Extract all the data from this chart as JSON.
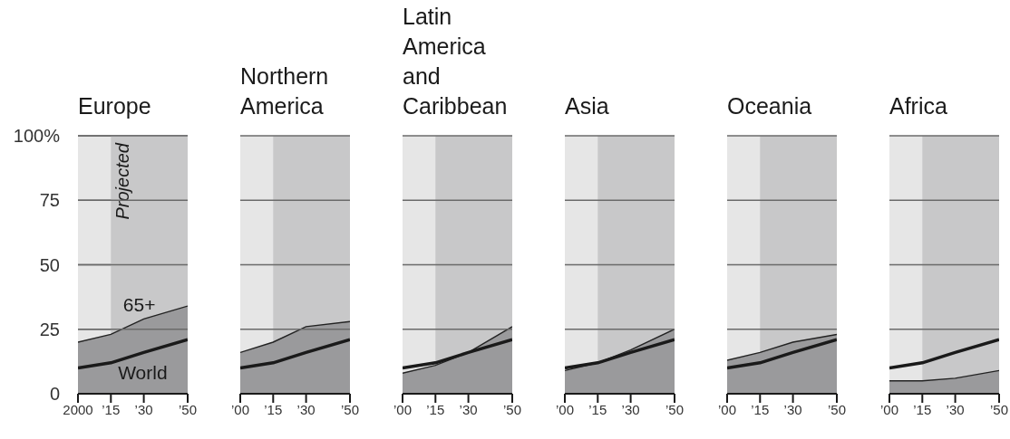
{
  "chart_data": [
    {
      "type": "area",
      "title": "Europe",
      "x": [
        2000,
        2015,
        2030,
        2050
      ],
      "series": [
        {
          "name": "65+",
          "color": "#9a9a9c",
          "values": [
            20,
            23,
            29,
            34
          ]
        },
        {
          "name": "World",
          "type": "line",
          "color": "#1a1a1a",
          "values": [
            10,
            12,
            16,
            21
          ]
        }
      ],
      "xlim": [
        2000,
        2050
      ],
      "xticks": [
        {
          "value": 2000,
          "label": "2000"
        },
        {
          "value": 2015,
          "label": "’15"
        },
        {
          "value": 2030,
          "label": "’30"
        },
        {
          "value": 2050,
          "label": "’50"
        }
      ],
      "ylim": [
        0,
        100
      ],
      "yticks": [
        0,
        25,
        50,
        75,
        {
          "value": 100,
          "label": "100%"
        }
      ],
      "grid": "y",
      "bands": [
        {
          "axis": "x",
          "from": 2015,
          "to": 2050,
          "label": "Projected",
          "color": "#c8c8c9"
        }
      ]
    },
    {
      "type": "area",
      "title": "Northern America",
      "x": [
        2000,
        2015,
        2030,
        2050
      ],
      "series": [
        {
          "color": "#9a9a9c",
          "values": [
            16,
            20,
            26,
            28
          ]
        },
        {
          "type": "line",
          "color": "#1a1a1a",
          "values": [
            10,
            12,
            16,
            21
          ]
        }
      ],
      "xlim": [
        2000,
        2050
      ],
      "xticks": [
        {
          "value": 2000,
          "label": "’00"
        },
        {
          "value": 2015,
          "label": "’15"
        },
        {
          "value": 2030,
          "label": "’30"
        },
        {
          "value": 2050,
          "label": "’50"
        }
      ],
      "ylim": [
        0,
        100
      ],
      "yticks": [
        0,
        25,
        50,
        75,
        100
      ],
      "grid": "y",
      "tick_labels": "x",
      "bands": [
        {
          "axis": "x",
          "from": 2015,
          "to": 2050,
          "color": "#c8c8c9"
        }
      ]
    },
    {
      "type": "area",
      "title": "Latin America and Caribbean",
      "x": [
        2000,
        2015,
        2030,
        2050
      ],
      "series": [
        {
          "color": "#9a9a9c",
          "values": [
            8,
            11,
            16,
            26
          ]
        },
        {
          "type": "line",
          "color": "#1a1a1a",
          "values": [
            10,
            12,
            16,
            21
          ]
        }
      ],
      "xlim": [
        2000,
        2050
      ],
      "xticks": [
        {
          "value": 2000,
          "label": "’00"
        },
        {
          "value": 2015,
          "label": "’15"
        },
        {
          "value": 2030,
          "label": "’30"
        },
        {
          "value": 2050,
          "label": "’50"
        }
      ],
      "ylim": [
        0,
        100
      ],
      "yticks": [
        0,
        25,
        50,
        75,
        100
      ],
      "grid": "y",
      "tick_labels": "x",
      "bands": [
        {
          "axis": "x",
          "from": 2015,
          "to": 2050,
          "color": "#c8c8c9"
        }
      ]
    },
    {
      "type": "area",
      "title": "Asia",
      "x": [
        2000,
        2015,
        2030,
        2050
      ],
      "series": [
        {
          "color": "#9a9a9c",
          "values": [
            9,
            12,
            17,
            25
          ]
        },
        {
          "type": "line",
          "color": "#1a1a1a",
          "values": [
            10,
            12,
            16,
            21
          ]
        }
      ],
      "xlim": [
        2000,
        2050
      ],
      "xticks": [
        {
          "value": 2000,
          "label": "’00"
        },
        {
          "value": 2015,
          "label": "’15"
        },
        {
          "value": 2030,
          "label": "’30"
        },
        {
          "value": 2050,
          "label": "’50"
        }
      ],
      "ylim": [
        0,
        100
      ],
      "yticks": [
        0,
        25,
        50,
        75,
        100
      ],
      "grid": "y",
      "tick_labels": "x",
      "bands": [
        {
          "axis": "x",
          "from": 2015,
          "to": 2050,
          "color": "#c8c8c9"
        }
      ]
    },
    {
      "type": "area",
      "title": "Oceania",
      "x": [
        2000,
        2015,
        2030,
        2050
      ],
      "series": [
        {
          "color": "#9a9a9c",
          "values": [
            13,
            16,
            20,
            23
          ]
        },
        {
          "type": "line",
          "color": "#1a1a1a",
          "values": [
            10,
            12,
            16,
            21
          ]
        }
      ],
      "xlim": [
        2000,
        2050
      ],
      "xticks": [
        {
          "value": 2000,
          "label": "’00"
        },
        {
          "value": 2015,
          "label": "’15"
        },
        {
          "value": 2030,
          "label": "’30"
        },
        {
          "value": 2050,
          "label": "’50"
        }
      ],
      "ylim": [
        0,
        100
      ],
      "yticks": [
        0,
        25,
        50,
        75,
        100
      ],
      "grid": "y",
      "tick_labels": "x",
      "bands": [
        {
          "axis": "x",
          "from": 2015,
          "to": 2050,
          "color": "#c8c8c9"
        }
      ]
    },
    {
      "type": "area",
      "title": "Africa",
      "x": [
        2000,
        2015,
        2030,
        2050
      ],
      "series": [
        {
          "color": "#9a9a9c",
          "values": [
            5,
            5,
            6,
            9
          ]
        },
        {
          "type": "line",
          "color": "#1a1a1a",
          "values": [
            10,
            12,
            16,
            21
          ]
        }
      ],
      "xlim": [
        2000,
        2050
      ],
      "xticks": [
        {
          "value": 2000,
          "label": "’00"
        },
        {
          "value": 2015,
          "label": "’15"
        },
        {
          "value": 2030,
          "label": "’30"
        },
        {
          "value": 2050,
          "label": "’50"
        }
      ],
      "ylim": [
        0,
        100
      ],
      "yticks": [
        0,
        25,
        50,
        75,
        100
      ],
      "grid": "y",
      "tick_labels": "x",
      "bands": [
        {
          "axis": "x",
          "from": 2015,
          "to": 2050,
          "color": "#c8c8c9"
        }
      ]
    }
  ]
}
